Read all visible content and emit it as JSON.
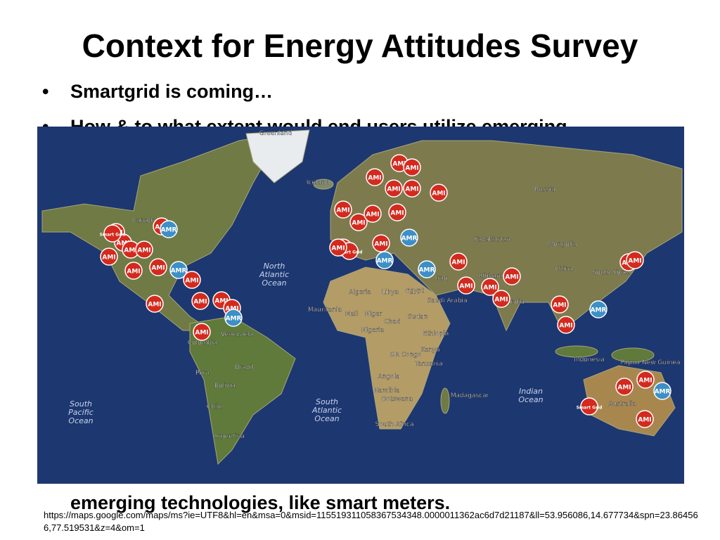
{
  "title": "Context for Energy Attitudes Survey",
  "bullets": [
    "Smartgrid is coming…",
    {
      "lines": [
        "How & to what extent would end users utilize emerging",
        "emerging technologies, like smart meters."
      ]
    }
  ],
  "map": {
    "places": [
      "Greenland",
      "Iceland",
      "Russia",
      "Kazakhstan",
      "Mongolia",
      "China",
      "South Korea",
      "Afghanistan",
      "Iraq",
      "Saudi Arabia",
      "India",
      "Algeria",
      "Libya",
      "Egypt",
      "Mauritania",
      "Mali",
      "Niger",
      "Chad",
      "Sudan",
      "Nigeria",
      "Ethiopia",
      "DR Congo",
      "Kenya",
      "Tanzania",
      "Angola",
      "Namibia",
      "Botswana",
      "Madagascar",
      "South Africa",
      "Indonesia",
      "Papua New Guinea",
      "Australia",
      "Venezuela",
      "Colombia",
      "Peru",
      "Brazil",
      "Bolivia",
      "Chile",
      "Argentina",
      "Canada"
    ],
    "oceans": [
      "North Atlantic Ocean",
      "South Atlantic Ocean",
      "South Pacific Ocean",
      "Indian Ocean"
    ],
    "markers": [
      "AMI",
      "AMI",
      "AMI",
      "AMI",
      "AMI",
      "AMI",
      "AMI",
      "AMR",
      "AMI",
      "AMI",
      "AMI",
      "AMI",
      "AMI",
      "AMI",
      "AMR",
      "AMI",
      "AMI",
      "AMI",
      "AMI",
      "AMI",
      "AMI",
      "AMI",
      "Smart Grid",
      "AMR",
      "AMI",
      "AMI",
      "AMI",
      "AMI",
      "AMI",
      "AMR",
      "AMI",
      "AMR",
      "Smart Grid",
      "AMI",
      "AMI",
      "AMI",
      "AMR",
      "AMI",
      "AMI",
      "AMI",
      "AMI",
      "AMI",
      "AMR",
      "AMI",
      "AMI",
      "AMI",
      "AMI",
      "Smart Grid",
      "AMR",
      "AMI"
    ]
  },
  "url": "https://maps.google.com/maps/ms?ie=UTF8&hl=en&msa=0&msid=115519311058367534348.0000011362ac6d7d21187&ll=53.956086,14.677734&spn=23.864566,77.519531&z=4&om=1"
}
